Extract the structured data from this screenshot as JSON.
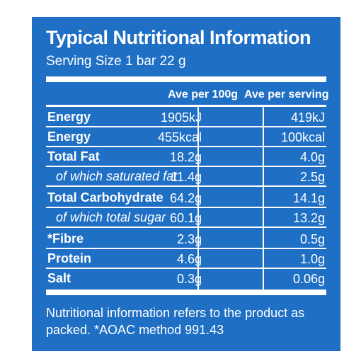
{
  "label": {
    "title": "Typical Nutritional Information",
    "serving": "Serving Size 1 bar 22 g",
    "col_100g": "Ave per 100g",
    "col_serving": "Ave per serving",
    "rows": [
      {
        "name": "Energy",
        "per100": "1905kJ",
        "serving": "419kJ"
      },
      {
        "name": "Energy",
        "per100": "455kcal",
        "serving": "100kcal"
      },
      {
        "name": "Total Fat",
        "per100": "18.2g",
        "serving": "4.0g"
      },
      {
        "name": "of which saturated fat",
        "per100": "11.4g",
        "serving": "2.5g"
      },
      {
        "name": "Total Carbohydrate",
        "per100": "64.2g",
        "serving": "14.1g"
      },
      {
        "name": "of which total sugar",
        "per100": "60.1g",
        "serving": "13.2g"
      },
      {
        "name": "*Fibre",
        "per100": "2.3g",
        "serving": "0.5g"
      },
      {
        "name": "Protein",
        "per100": "4.6g",
        "serving": "1.0g"
      },
      {
        "name": "Salt",
        "per100": "0.3g",
        "serving": "0.06g"
      }
    ],
    "footnote": "Nutritional information refers to the product as packed. *AOAC method 991.43"
  },
  "colors": {
    "panel": "#1f6fc5",
    "text": "#ffffff"
  }
}
